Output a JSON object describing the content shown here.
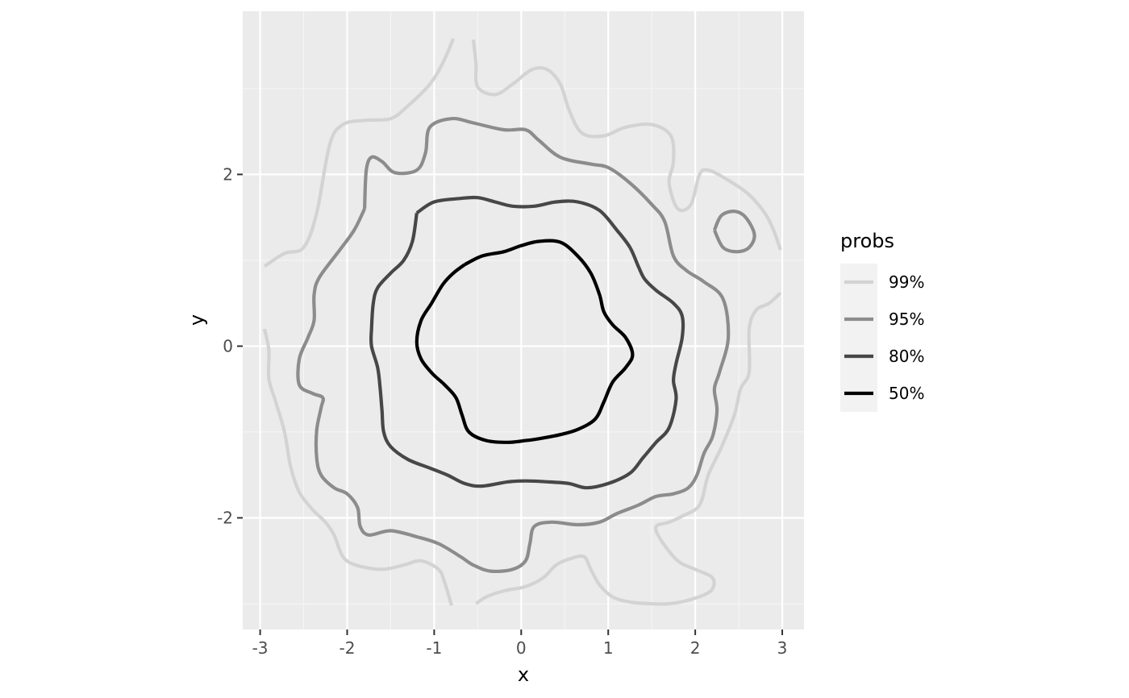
{
  "chart_data": {
    "type": "contour",
    "xlabel": "x",
    "ylabel": "y",
    "xlim": [
      -3.2,
      3.25
    ],
    "ylim": [
      -3.3,
      3.9
    ],
    "x_ticks": [
      -3,
      -2,
      -1,
      0,
      1,
      2,
      3
    ],
    "x_tick_labels": [
      "-3",
      "-2",
      "-1",
      "0",
      "1",
      "2",
      "3"
    ],
    "y_ticks": [
      -2,
      0,
      2
    ],
    "y_tick_labels": [
      "-2",
      "0",
      "2"
    ],
    "x_minor": [
      -2.5,
      -1.5,
      -0.5,
      0.5,
      1.5,
      2.5
    ],
    "y_minor": [
      -3,
      -1,
      1,
      3
    ],
    "grid": true,
    "legend": {
      "title": "probs",
      "position": "right",
      "entries": [
        {
          "label": "99%",
          "color": "#d3d3d3"
        },
        {
          "label": "95%",
          "color": "#8c8c8c"
        },
        {
          "label": "80%",
          "color": "#474747"
        },
        {
          "label": "50%",
          "color": "#000000"
        }
      ]
    },
    "colors": {
      "panel_bg": "#ebebeb",
      "grid_major": "#ffffff",
      "grid_minor": "#f5f5f5",
      "legend_key_bg": "#f2f2f2"
    },
    "series": [
      {
        "level": "99%",
        "color": "#d3d3d3",
        "paths": [
          [
            [
              -2.95,
              0.93
            ],
            [
              -2.72,
              1.08
            ],
            [
              -2.5,
              1.15
            ],
            [
              -2.35,
              1.55
            ],
            [
              -2.2,
              2.35
            ],
            [
              -2.05,
              2.58
            ],
            [
              -1.8,
              2.63
            ],
            [
              -1.5,
              2.65
            ],
            [
              -1.3,
              2.8
            ],
            [
              -1.05,
              3.05
            ],
            [
              -0.9,
              3.3
            ],
            [
              -0.78,
              3.58
            ]
          ],
          [
            [
              -0.55,
              3.57
            ],
            [
              -0.52,
              3.3
            ],
            [
              -0.5,
              3.02
            ],
            [
              -0.3,
              2.93
            ],
            [
              -0.1,
              3.05
            ],
            [
              0.12,
              3.22
            ],
            [
              0.3,
              3.22
            ],
            [
              0.45,
              3.05
            ],
            [
              0.55,
              2.75
            ],
            [
              0.7,
              2.48
            ],
            [
              0.95,
              2.45
            ],
            [
              1.2,
              2.55
            ],
            [
              1.5,
              2.58
            ],
            [
              1.72,
              2.45
            ],
            [
              1.75,
              2.15
            ],
            [
              1.7,
              1.9
            ],
            [
              1.8,
              1.6
            ],
            [
              1.95,
              1.65
            ],
            [
              2.05,
              2.0
            ],
            [
              2.15,
              2.05
            ],
            [
              2.35,
              1.95
            ],
            [
              2.6,
              1.78
            ],
            [
              2.8,
              1.55
            ],
            [
              2.9,
              1.35
            ],
            [
              2.98,
              1.12
            ]
          ],
          [
            [
              2.98,
              0.62
            ],
            [
              2.85,
              0.5
            ],
            [
              2.7,
              0.42
            ],
            [
              2.62,
              0.2
            ],
            [
              2.62,
              -0.3
            ],
            [
              2.52,
              -0.5
            ],
            [
              2.45,
              -0.8
            ],
            [
              2.3,
              -1.18
            ],
            [
              2.15,
              -1.5
            ],
            [
              2.05,
              -1.85
            ],
            [
              1.85,
              -1.98
            ],
            [
              1.7,
              -2.05
            ],
            [
              1.55,
              -2.1
            ],
            [
              1.6,
              -2.25
            ],
            [
              1.8,
              -2.5
            ],
            [
              2.0,
              -2.6
            ],
            [
              2.2,
              -2.7
            ],
            [
              2.18,
              -2.85
            ],
            [
              1.95,
              -2.95
            ],
            [
              1.7,
              -3.0
            ],
            [
              1.5,
              -3.0
            ],
            [
              1.25,
              -2.98
            ],
            [
              1.05,
              -2.92
            ],
            [
              0.9,
              -2.78
            ],
            [
              0.8,
              -2.6
            ],
            [
              0.72,
              -2.45
            ],
            [
              0.55,
              -2.48
            ],
            [
              0.4,
              -2.55
            ],
            [
              0.25,
              -2.7
            ],
            [
              0.05,
              -2.8
            ],
            [
              -0.2,
              -2.85
            ],
            [
              -0.4,
              -2.92
            ],
            [
              -0.52,
              -3.0
            ]
          ],
          [
            [
              -0.8,
              -3.02
            ],
            [
              -0.88,
              -2.75
            ],
            [
              -0.95,
              -2.6
            ],
            [
              -1.15,
              -2.5
            ],
            [
              -1.35,
              -2.55
            ],
            [
              -1.6,
              -2.6
            ],
            [
              -1.9,
              -2.55
            ],
            [
              -2.05,
              -2.45
            ],
            [
              -2.15,
              -2.2
            ],
            [
              -2.25,
              -2.05
            ],
            [
              -2.4,
              -1.9
            ],
            [
              -2.55,
              -1.7
            ],
            [
              -2.65,
              -1.4
            ],
            [
              -2.72,
              -1.0
            ],
            [
              -2.82,
              -0.65
            ],
            [
              -2.9,
              -0.38
            ],
            [
              -2.9,
              -0.05
            ],
            [
              -2.95,
              0.2
            ]
          ]
        ]
      },
      {
        "level": "95%",
        "color": "#8c8c8c",
        "paths": [
          [
            [
              -1.8,
              1.6
            ],
            [
              -1.78,
              2.05
            ],
            [
              -1.72,
              2.2
            ],
            [
              -1.6,
              2.15
            ],
            [
              -1.45,
              2.02
            ],
            [
              -1.2,
              2.05
            ],
            [
              -1.1,
              2.25
            ],
            [
              -1.05,
              2.55
            ],
            [
              -0.8,
              2.65
            ],
            [
              -0.55,
              2.6
            ],
            [
              -0.2,
              2.52
            ],
            [
              0.05,
              2.52
            ],
            [
              0.2,
              2.4
            ],
            [
              0.45,
              2.2
            ],
            [
              0.8,
              2.12
            ],
            [
              1.0,
              2.08
            ],
            [
              1.25,
              1.9
            ],
            [
              1.5,
              1.65
            ],
            [
              1.65,
              1.45
            ],
            [
              1.75,
              1.05
            ],
            [
              1.9,
              0.88
            ],
            [
              2.1,
              0.75
            ],
            [
              2.32,
              0.55
            ],
            [
              2.38,
              0.1
            ],
            [
              2.28,
              -0.3
            ],
            [
              2.22,
              -0.5
            ],
            [
              2.25,
              -0.75
            ],
            [
              2.2,
              -1.05
            ],
            [
              2.1,
              -1.25
            ],
            [
              2.02,
              -1.5
            ],
            [
              1.92,
              -1.65
            ],
            [
              1.75,
              -1.72
            ],
            [
              1.55,
              -1.75
            ],
            [
              1.35,
              -1.85
            ],
            [
              1.1,
              -1.95
            ],
            [
              0.9,
              -2.05
            ],
            [
              0.65,
              -2.08
            ],
            [
              0.35,
              -2.05
            ],
            [
              0.15,
              -2.1
            ],
            [
              0.1,
              -2.3
            ],
            [
              0.05,
              -2.5
            ],
            [
              -0.1,
              -2.6
            ],
            [
              -0.35,
              -2.62
            ],
            [
              -0.55,
              -2.55
            ],
            [
              -0.7,
              -2.45
            ],
            [
              -0.95,
              -2.3
            ],
            [
              -1.2,
              -2.22
            ],
            [
              -1.5,
              -2.15
            ],
            [
              -1.75,
              -2.2
            ],
            [
              -1.85,
              -2.1
            ],
            [
              -1.88,
              -1.88
            ],
            [
              -2.0,
              -1.72
            ],
            [
              -2.15,
              -1.65
            ],
            [
              -2.3,
              -1.5
            ],
            [
              -2.35,
              -1.3
            ],
            [
              -2.35,
              -0.98
            ],
            [
              -2.3,
              -0.72
            ],
            [
              -2.28,
              -0.6
            ],
            [
              -2.4,
              -0.55
            ],
            [
              -2.55,
              -0.45
            ],
            [
              -2.55,
              -0.15
            ],
            [
              -2.45,
              0.1
            ],
            [
              -2.38,
              0.3
            ],
            [
              -2.38,
              0.6
            ],
            [
              -2.32,
              0.8
            ],
            [
              -2.1,
              1.1
            ],
            [
              -1.92,
              1.35
            ],
            [
              -1.8,
              1.6
            ]
          ],
          [
            [
              2.22,
              1.35
            ],
            [
              2.3,
              1.52
            ],
            [
              2.45,
              1.57
            ],
            [
              2.58,
              1.5
            ],
            [
              2.68,
              1.3
            ],
            [
              2.62,
              1.15
            ],
            [
              2.48,
              1.1
            ],
            [
              2.32,
              1.15
            ],
            [
              2.22,
              1.35
            ]
          ]
        ]
      },
      {
        "level": "80%",
        "color": "#474747",
        "paths": [
          [
            [
              -1.2,
              1.55
            ],
            [
              -1.0,
              1.68
            ],
            [
              -0.7,
              1.72
            ],
            [
              -0.5,
              1.73
            ],
            [
              -0.3,
              1.68
            ],
            [
              -0.1,
              1.63
            ],
            [
              0.15,
              1.63
            ],
            [
              0.4,
              1.68
            ],
            [
              0.65,
              1.68
            ],
            [
              0.9,
              1.58
            ],
            [
              1.1,
              1.35
            ],
            [
              1.25,
              1.15
            ],
            [
              1.35,
              0.92
            ],
            [
              1.42,
              0.78
            ],
            [
              1.55,
              0.65
            ],
            [
              1.75,
              0.5
            ],
            [
              1.85,
              0.35
            ],
            [
              1.85,
              0.1
            ],
            [
              1.78,
              -0.2
            ],
            [
              1.75,
              -0.4
            ],
            [
              1.78,
              -0.62
            ],
            [
              1.7,
              -0.95
            ],
            [
              1.55,
              -1.12
            ],
            [
              1.4,
              -1.3
            ],
            [
              1.25,
              -1.48
            ],
            [
              1.0,
              -1.6
            ],
            [
              0.75,
              -1.65
            ],
            [
              0.55,
              -1.6
            ],
            [
              0.3,
              -1.58
            ],
            [
              0.05,
              -1.57
            ],
            [
              -0.15,
              -1.58
            ],
            [
              -0.45,
              -1.63
            ],
            [
              -0.65,
              -1.6
            ],
            [
              -0.85,
              -1.5
            ],
            [
              -1.05,
              -1.42
            ],
            [
              -1.3,
              -1.32
            ],
            [
              -1.5,
              -1.17
            ],
            [
              -1.58,
              -1.0
            ],
            [
              -1.6,
              -0.75
            ],
            [
              -1.62,
              -0.5
            ],
            [
              -1.65,
              -0.25
            ],
            [
              -1.72,
              0.0
            ],
            [
              -1.72,
              0.2
            ],
            [
              -1.7,
              0.5
            ],
            [
              -1.65,
              0.68
            ],
            [
              -1.5,
              0.85
            ],
            [
              -1.35,
              1.0
            ],
            [
              -1.25,
              1.22
            ],
            [
              -1.2,
              1.55
            ]
          ]
        ]
      },
      {
        "level": "50%",
        "color": "#000000",
        "paths": [
          [
            [
              -0.65,
              0.95
            ],
            [
              -0.45,
              1.05
            ],
            [
              -0.2,
              1.1
            ],
            [
              0.0,
              1.17
            ],
            [
              0.2,
              1.22
            ],
            [
              0.45,
              1.21
            ],
            [
              0.65,
              1.05
            ],
            [
              0.8,
              0.85
            ],
            [
              0.9,
              0.6
            ],
            [
              0.95,
              0.4
            ],
            [
              1.05,
              0.25
            ],
            [
              1.2,
              0.1
            ],
            [
              1.28,
              -0.1
            ],
            [
              1.2,
              -0.25
            ],
            [
              1.05,
              -0.42
            ],
            [
              0.95,
              -0.65
            ],
            [
              0.85,
              -0.85
            ],
            [
              0.65,
              -0.97
            ],
            [
              0.45,
              -1.03
            ],
            [
              0.25,
              -1.07
            ],
            [
              0.05,
              -1.1
            ],
            [
              -0.15,
              -1.12
            ],
            [
              -0.4,
              -1.1
            ],
            [
              -0.6,
              -1.0
            ],
            [
              -0.68,
              -0.8
            ],
            [
              -0.75,
              -0.6
            ],
            [
              -0.88,
              -0.45
            ],
            [
              -1.02,
              -0.32
            ],
            [
              -1.15,
              -0.15
            ],
            [
              -1.2,
              0.05
            ],
            [
              -1.15,
              0.3
            ],
            [
              -1.03,
              0.5
            ],
            [
              -0.9,
              0.72
            ],
            [
              -0.78,
              0.85
            ],
            [
              -0.65,
              0.95
            ]
          ]
        ]
      }
    ]
  }
}
